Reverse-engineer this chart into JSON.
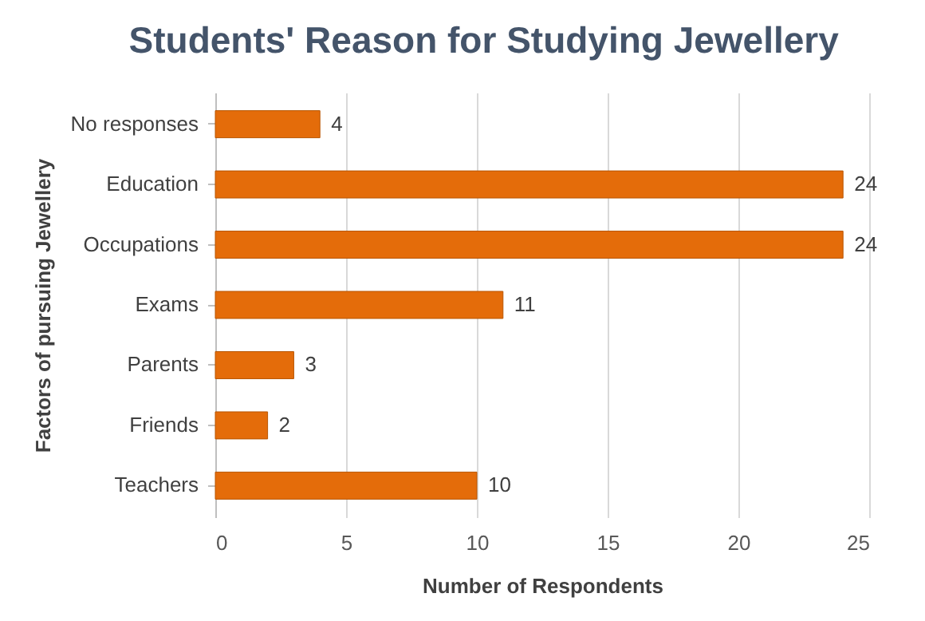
{
  "chart_data": {
    "type": "bar",
    "orientation": "horizontal",
    "title": "Students' Reason for Studying Jewellery",
    "xlabel": "Number of Respondents",
    "ylabel": "Factors of pursuing Jewellery",
    "categories": [
      "No responses",
      "Education",
      "Occupations",
      "Exams",
      "Parents",
      "Friends",
      "Teachers"
    ],
    "values": [
      4,
      24,
      24,
      11,
      3,
      2,
      10
    ],
    "color": "#e46c0a",
    "data_labels": true,
    "xlim": [
      0,
      25
    ],
    "xticks": [
      0,
      5,
      10,
      15,
      20,
      25
    ],
    "grid": "x"
  }
}
